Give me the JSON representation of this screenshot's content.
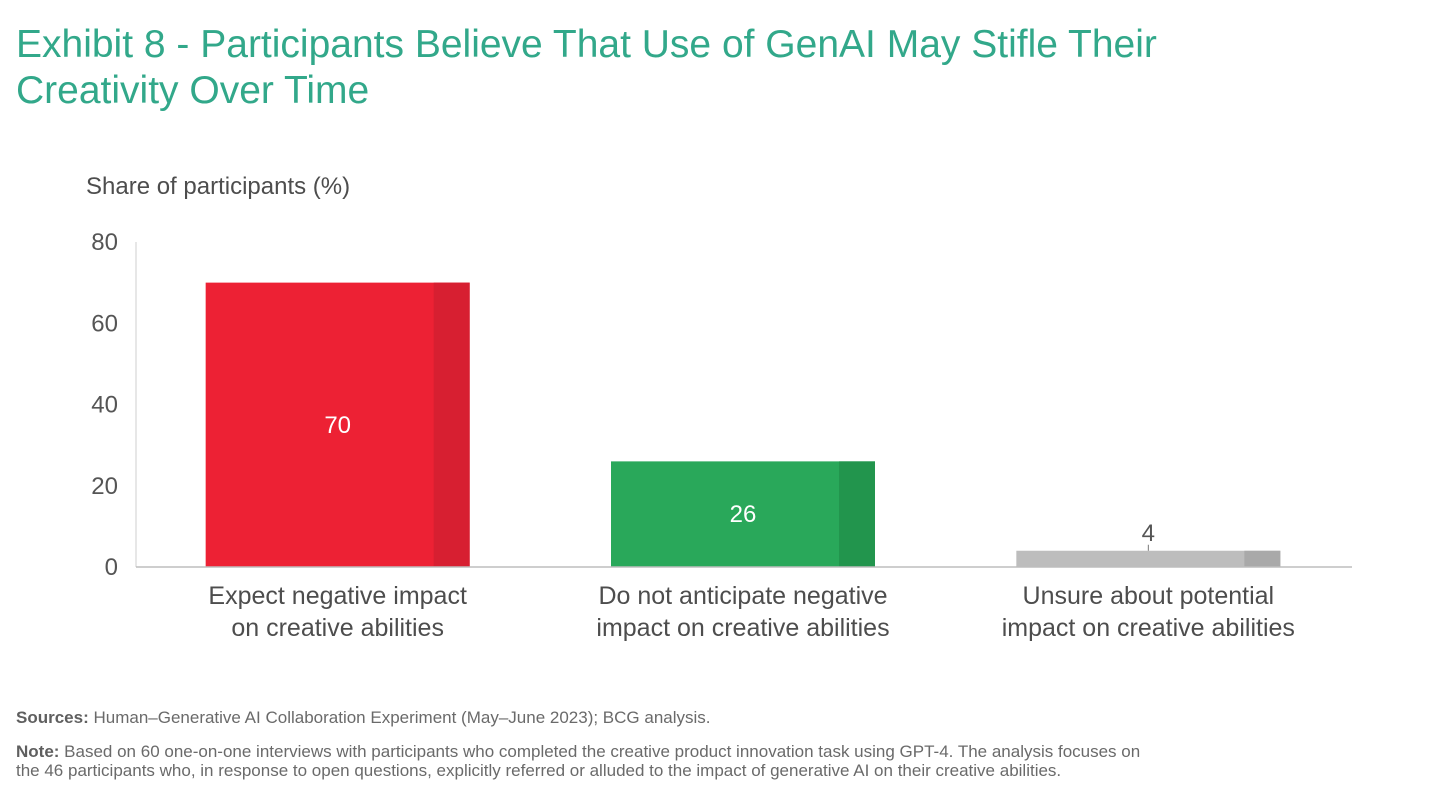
{
  "title": {
    "line1": "Exhibit 8 - Participants Believe That Use of GenAI May Stifle Their",
    "line2": "Creativity Over Time"
  },
  "colors": {
    "title": "#32a88a",
    "negative": "#ed2134",
    "negative_shade": "#d71f31",
    "positive": "#29a85a",
    "positive_shade": "#22954d",
    "unsure": "#bdbdbd",
    "unsure_shade": "#a9a9a9"
  },
  "chart_data": {
    "type": "bar",
    "title": "Exhibit 8 - Participants Believe That Use of GenAI May Stifle Their Creativity Over Time",
    "ylabel": "Share of participants (%)",
    "xlabel": "",
    "ylim": [
      0,
      80
    ],
    "yticks": [
      0,
      20,
      40,
      60,
      80
    ],
    "categories": [
      [
        "Expect negative impact",
        "on creative abilities"
      ],
      [
        "Do not anticipate negative",
        "impact on creative abilities"
      ],
      [
        "Unsure about potential",
        "impact on creative abilities"
      ]
    ],
    "values": [
      70,
      26,
      4
    ],
    "data_labels": [
      "70",
      "26",
      "4"
    ],
    "bar_colors": [
      "negative",
      "positive",
      "unsure"
    ],
    "grid": false,
    "legend": "none"
  },
  "footer": {
    "sources_label": "Sources:",
    "sources_text": " Human–Generative AI Collaboration Experiment (May–June 2023); BCG analysis.",
    "note_label": "Note:",
    "note_line1": " Based on 60 one-on-one interviews with participants who completed the creative product innovation task using GPT-4. The analysis focuses on",
    "note_line2": "the 46 participants who, in response to open questions, explicitly referred or alluded to the impact of generative AI on their creative abilities."
  }
}
